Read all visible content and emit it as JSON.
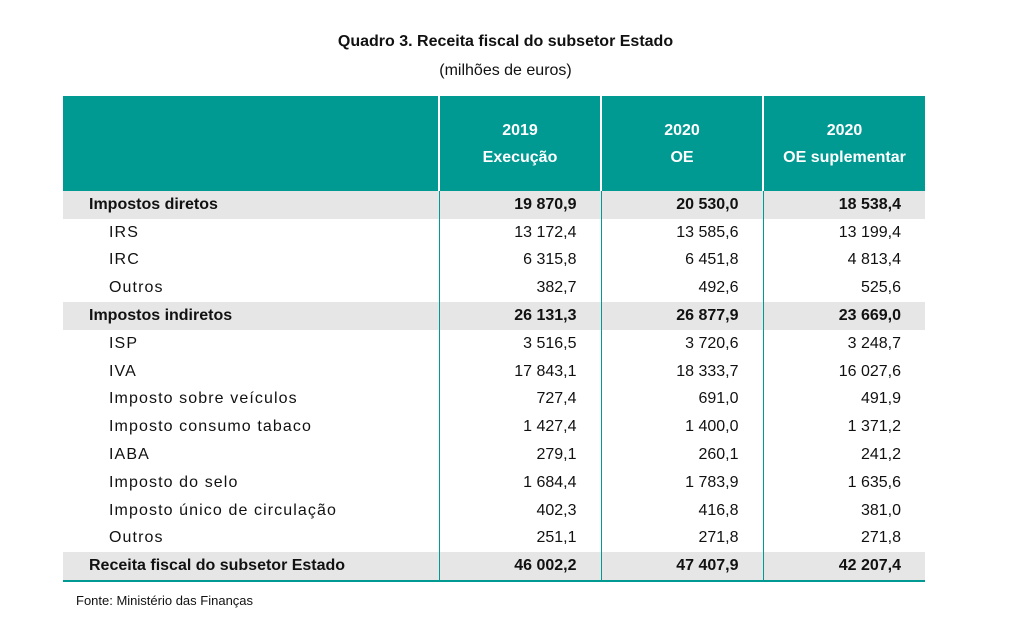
{
  "title": "Quadro 3. Receita fiscal do subsetor Estado",
  "subtitle": "(milhões de euros)",
  "columns": [
    {
      "year": "2019",
      "label": "Execução"
    },
    {
      "year": "2020",
      "label": "OE"
    },
    {
      "year": "2020",
      "label": "OE suplementar"
    }
  ],
  "rows": [
    {
      "label": "Impostos diretos",
      "values": [
        "19 870,9",
        "20 530,0",
        "18 538,4"
      ]
    },
    {
      "label": "IRS",
      "values": [
        "13 172,4",
        "13 585,6",
        "13 199,4"
      ]
    },
    {
      "label": "IRC",
      "values": [
        "6 315,8",
        "6 451,8",
        "4 813,4"
      ]
    },
    {
      "label": "Outros",
      "values": [
        "382,7",
        "492,6",
        "525,6"
      ]
    },
    {
      "label": "Impostos indiretos",
      "values": [
        "26 131,3",
        "26 877,9",
        "23 669,0"
      ]
    },
    {
      "label": "ISP",
      "values": [
        "3 516,5",
        "3 720,6",
        "3 248,7"
      ]
    },
    {
      "label": "IVA",
      "values": [
        "17 843,1",
        "18 333,7",
        "16 027,6"
      ]
    },
    {
      "label": "Imposto sobre veículos",
      "values": [
        "727,4",
        "691,0",
        "491,9"
      ]
    },
    {
      "label": "Imposto consumo tabaco",
      "values": [
        "1 427,4",
        "1 400,0",
        "1 371,2"
      ]
    },
    {
      "label": "IABA",
      "values": [
        "279,1",
        "260,1",
        "241,2"
      ]
    },
    {
      "label": "Imposto do selo",
      "values": [
        "1 684,4",
        "1 783,9",
        "1 635,6"
      ]
    },
    {
      "label": "Imposto único de circulação",
      "values": [
        "402,3",
        "416,8",
        "381,0"
      ]
    },
    {
      "label": "Outros",
      "values": [
        "251,1",
        "271,8",
        "271,8"
      ]
    },
    {
      "label": "Receita fiscal do subsetor Estado",
      "values": [
        "46 002,2",
        "47 407,9",
        "42 207,4"
      ]
    }
  ],
  "source": "Fonte: Ministério das Finanças",
  "colors": {
    "header_bg": "#009a93",
    "section_bg": "#e6e6e6"
  }
}
